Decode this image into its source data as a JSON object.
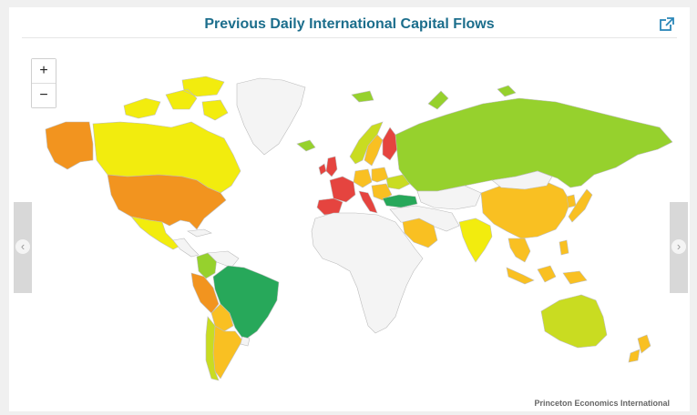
{
  "title": "Previous Daily International Capital Flows",
  "zoom": {
    "in_label": "+",
    "out_label": "−"
  },
  "nav": {
    "prev_icon": "chevron-left-icon",
    "next_icon": "chevron-right-icon"
  },
  "credit": "Princeton Economics International",
  "colors": {
    "no_data": "#f4f4f4",
    "dark_green": "#27a85a",
    "green": "#96d12d",
    "yellow_green": "#c9dc21",
    "yellow": "#f2ec0e",
    "orange_yellow": "#f9c022",
    "orange": "#f2941f",
    "red": "#e5443f",
    "ocean": "#ffffff"
  }
}
